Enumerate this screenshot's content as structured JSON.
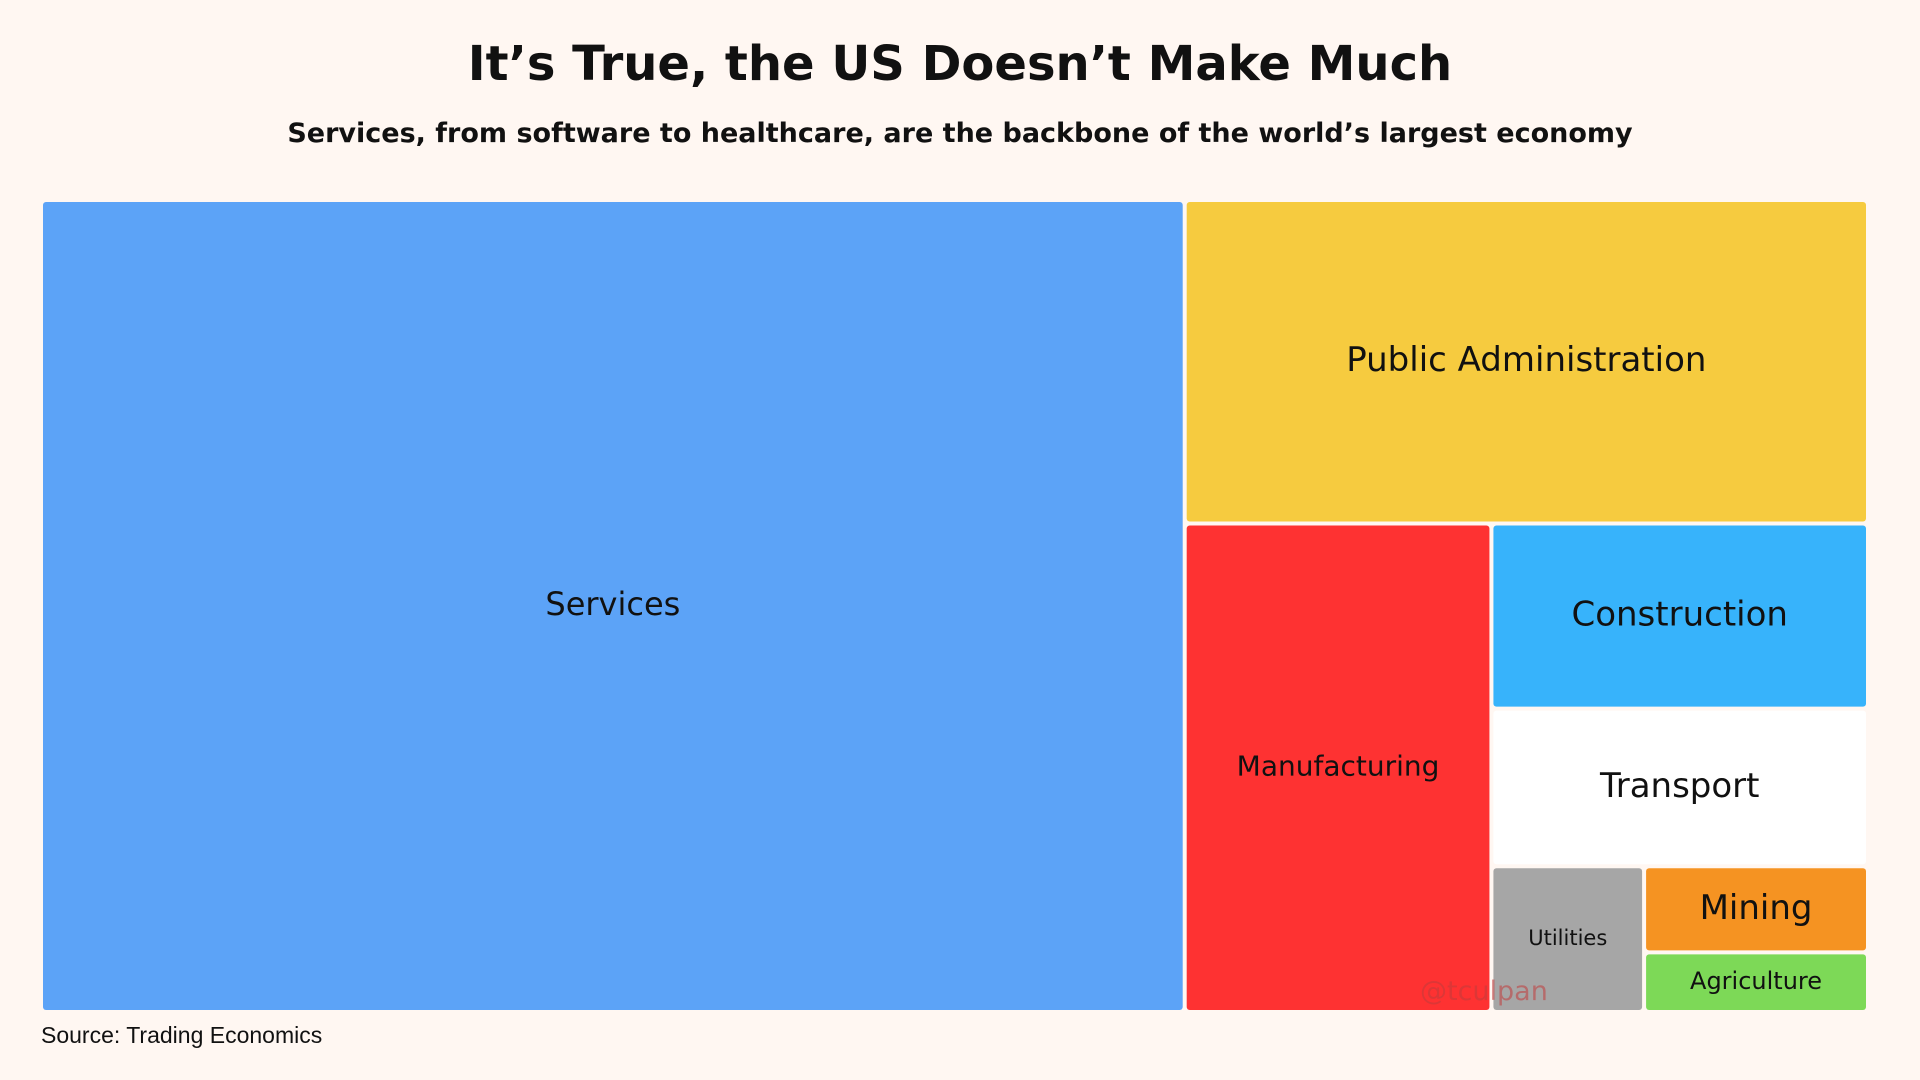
{
  "title": "It’s True, the US Doesn’t Make Much",
  "subtitle": "Services, from software to healthcare, are the backbone of the world’s largest economy",
  "source": "Source: Trading Economics",
  "watermark": "@tculpan",
  "chart_data": {
    "type": "treemap",
    "title": "It’s True, the US Doesn’t Make Much",
    "subtitle": "Services, from software to healthcare, are the backbone of the world’s largest economy",
    "categories": [
      "Services",
      "Public Administration",
      "Manufacturing",
      "Construction",
      "Transport",
      "Utilities",
      "Mining",
      "Agriculture"
    ],
    "values": [
      62.6,
      14.9,
      10.1,
      4.7,
      4.0,
      1.5,
      1.3,
      0.9
    ],
    "colors": [
      "#5ca3f7",
      "#f6cb3f",
      "#fe3232",
      "#37b3fb",
      "#ffffff",
      "#a6a6a6",
      "#f59322",
      "#7dd957"
    ],
    "legend": "none",
    "grid": false
  }
}
